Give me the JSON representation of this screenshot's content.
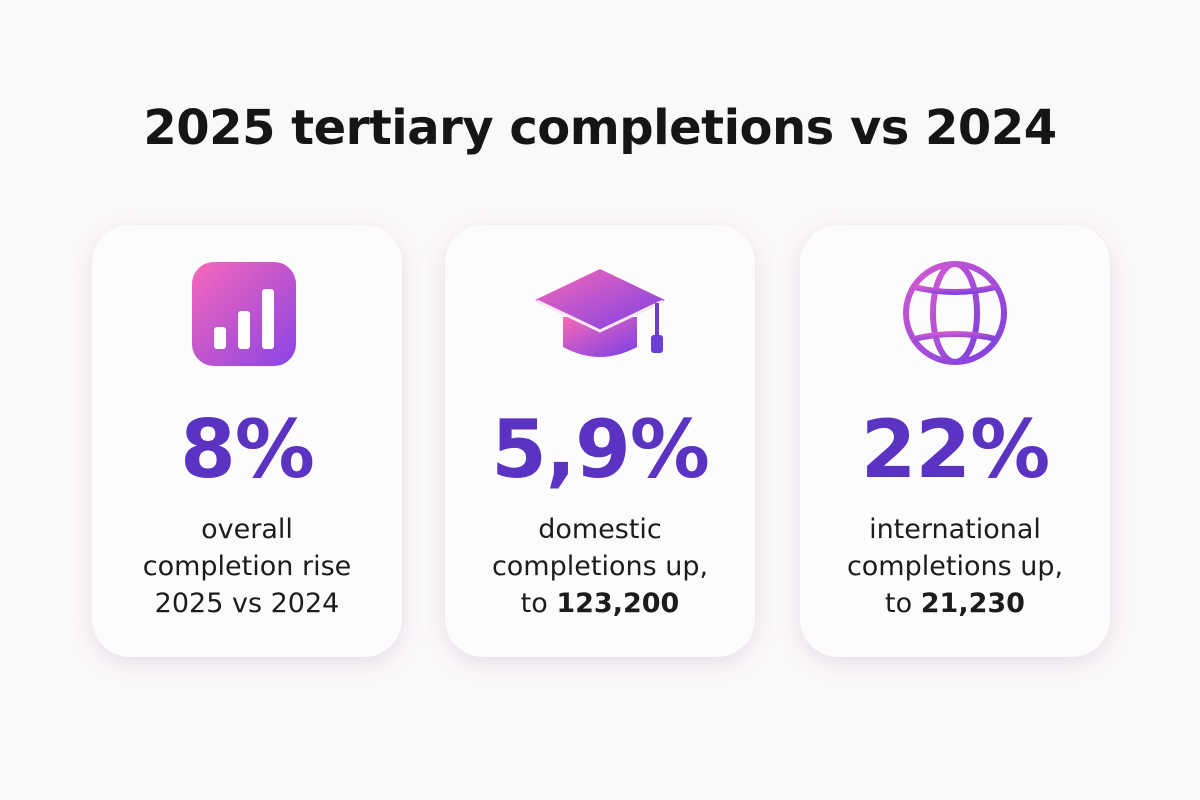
{
  "title": "2025 tertiary completions vs 2024",
  "cards": [
    {
      "value": "8%",
      "lines": [
        [
          {
            "text": "overall"
          }
        ],
        [
          {
            "text": "completion rise"
          }
        ],
        [
          {
            "text": "2025 vs 2024"
          }
        ]
      ]
    },
    {
      "value": "5,9%",
      "lines": [
        [
          {
            "text": "domestic"
          }
        ],
        [
          {
            "text": "completions up,"
          }
        ],
        [
          {
            "text": "to"
          },
          {
            "text": "123,200",
            "bold": true
          }
        ]
      ]
    },
    {
      "value": "22%",
      "lines": [
        [
          {
            "text": "international"
          }
        ],
        [
          {
            "text": "completions up,"
          }
        ],
        [
          {
            "text": "to"
          },
          {
            "text": "21,230",
            "bold": true
          }
        ]
      ]
    }
  ]
}
